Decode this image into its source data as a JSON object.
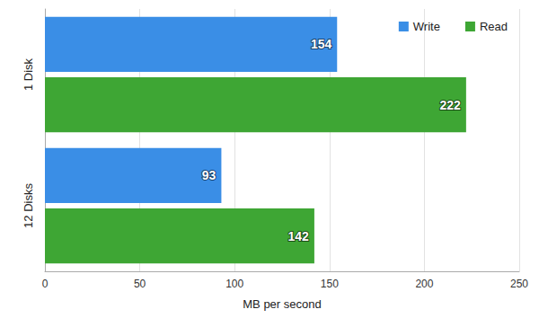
{
  "chart_data": {
    "type": "bar",
    "orientation": "horizontal",
    "categories": [
      "1 Disk",
      "12 Disks"
    ],
    "series": [
      {
        "name": "Write",
        "color": "#3a8ee6",
        "values": [
          154,
          93
        ]
      },
      {
        "name": "Read",
        "color": "#3ea634",
        "values": [
          222,
          142
        ]
      }
    ],
    "xlabel": "MB per second",
    "xlim": [
      0,
      250
    ],
    "xticks": [
      0,
      50,
      100,
      150,
      200,
      250
    ],
    "grid": true,
    "legend": "top-right",
    "data_labels": true
  }
}
